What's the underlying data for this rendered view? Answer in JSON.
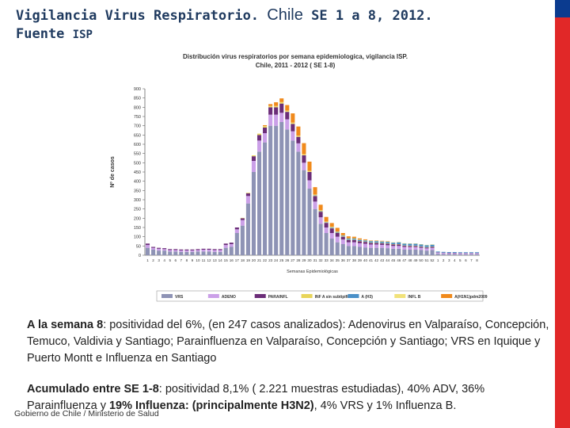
{
  "header": {
    "title_part1": "Vigilancia Virus Respiratorio.",
    "title_part2": "Chile",
    "title_part3": "SE 1 a 8, 2012.",
    "source_label": "Fuente",
    "source_value": "ISP"
  },
  "chart_data": {
    "type": "bar",
    "stacked": true,
    "title": "Distribución virus respiratorios por semana epidemiologica, vigilancia ISP.",
    "subtitle": "Chile, 2011 -  2012 ( SE 1-8)",
    "xlabel": "Semanas Epidemiológicas",
    "ylabel": "Nº de casos",
    "ylim": [
      0,
      900
    ],
    "yticks": [
      0,
      50,
      100,
      150,
      200,
      250,
      300,
      350,
      400,
      450,
      500,
      550,
      600,
      650,
      700,
      750,
      800,
      850,
      900
    ],
    "grid": false,
    "legend_position": "bottom",
    "categories": [
      "1",
      "2",
      "3",
      "4",
      "5",
      "6",
      "7",
      "8",
      "9",
      "10",
      "11",
      "12",
      "13",
      "14",
      "15",
      "16",
      "17",
      "18",
      "19",
      "20",
      "21",
      "22",
      "23",
      "24",
      "25",
      "26",
      "27",
      "28",
      "29",
      "30",
      "31",
      "32",
      "33",
      "34",
      "35",
      "36",
      "37",
      "38",
      "39",
      "40",
      "41",
      "42",
      "43",
      "44",
      "45",
      "46",
      "47",
      "48",
      "49",
      "50",
      "51",
      "52",
      "1",
      "2",
      "3",
      "4",
      "5",
      "6",
      "7",
      "8"
    ],
    "series": [
      {
        "name": "VRS",
        "color": "#8e93b5",
        "values": [
          40,
          30,
          25,
          25,
          20,
          20,
          18,
          18,
          18,
          20,
          20,
          20,
          18,
          18,
          40,
          45,
          120,
          160,
          280,
          450,
          560,
          610,
          700,
          700,
          720,
          680,
          620,
          560,
          460,
          360,
          250,
          170,
          120,
          90,
          70,
          60,
          50,
          50,
          45,
          42,
          40,
          40,
          40,
          38,
          35,
          35,
          30,
          30,
          30,
          28,
          25,
          28,
          8,
          6,
          6,
          6,
          5,
          5,
          5,
          5
        ]
      },
      {
        "name": "ADENO",
        "color": "#cba0e8",
        "values": [
          15,
          10,
          10,
          8,
          8,
          8,
          8,
          8,
          8,
          8,
          10,
          10,
          10,
          10,
          15,
          15,
          20,
          30,
          40,
          60,
          60,
          50,
          60,
          60,
          50,
          55,
          50,
          45,
          40,
          45,
          40,
          35,
          30,
          30,
          30,
          25,
          20,
          20,
          20,
          20,
          18,
          18,
          16,
          16,
          15,
          15,
          15,
          14,
          14,
          12,
          12,
          12,
          6,
          6,
          5,
          5,
          5,
          5,
          5,
          5
        ]
      },
      {
        "name": "PARAINFL",
        "color": "#6b2d78",
        "values": [
          8,
          5,
          5,
          5,
          5,
          5,
          5,
          5,
          5,
          5,
          5,
          5,
          5,
          5,
          8,
          8,
          10,
          10,
          15,
          25,
          30,
          30,
          40,
          40,
          50,
          40,
          40,
          35,
          40,
          45,
          30,
          30,
          25,
          25,
          20,
          15,
          12,
          12,
          10,
          10,
          8,
          8,
          8,
          8,
          8,
          8,
          6,
          6,
          6,
          6,
          5,
          5,
          2,
          2,
          2,
          2,
          2,
          2,
          2,
          2
        ]
      },
      {
        "name": "INF A sin subtipificar",
        "color": "#e8d55a",
        "values": [
          0,
          0,
          0,
          0,
          0,
          0,
          0,
          0,
          0,
          0,
          0,
          0,
          0,
          0,
          0,
          0,
          0,
          2,
          3,
          5,
          6,
          6,
          5,
          5,
          5,
          4,
          4,
          3,
          3,
          3,
          3,
          3,
          2,
          2,
          2,
          2,
          2,
          2,
          2,
          2,
          2,
          2,
          2,
          2,
          2,
          2,
          2,
          2,
          2,
          2,
          2,
          2,
          0,
          0,
          0,
          0,
          0,
          0,
          0,
          0
        ]
      },
      {
        "name": "A (H3)",
        "color": "#4a90c8",
        "values": [
          0,
          0,
          0,
          0,
          0,
          0,
          0,
          0,
          0,
          0,
          0,
          0,
          0,
          0,
          0,
          0,
          0,
          0,
          0,
          0,
          0,
          0,
          0,
          0,
          0,
          0,
          0,
          0,
          0,
          0,
          2,
          2,
          2,
          4,
          4,
          4,
          6,
          6,
          6,
          6,
          8,
          8,
          8,
          8,
          8,
          10,
          10,
          10,
          10,
          10,
          10,
          10,
          4,
          4,
          4,
          4,
          4,
          4,
          4,
          4
        ]
      },
      {
        "name": "INFL B",
        "color": "#f1e27a",
        "values": [
          0,
          0,
          0,
          0,
          0,
          0,
          0,
          0,
          0,
          0,
          0,
          0,
          0,
          0,
          0,
          0,
          0,
          0,
          0,
          0,
          2,
          2,
          2,
          2,
          3,
          3,
          3,
          3,
          3,
          3,
          3,
          3,
          3,
          3,
          2,
          2,
          2,
          2,
          2,
          2,
          2,
          2,
          2,
          2,
          2,
          2,
          2,
          2,
          2,
          2,
          2,
          2,
          0,
          0,
          0,
          0,
          0,
          0,
          0,
          0
        ]
      },
      {
        "name": "A(H1N1)pdm2009",
        "color": "#f08a1c",
        "values": [
          0,
          0,
          0,
          0,
          0,
          0,
          0,
          0,
          0,
          0,
          0,
          0,
          0,
          0,
          0,
          0,
          0,
          0,
          0,
          0,
          0,
          5,
          10,
          20,
          20,
          30,
          50,
          50,
          60,
          50,
          40,
          30,
          25,
          20,
          20,
          12,
          10,
          8,
          6,
          4,
          2,
          2,
          2,
          2,
          0,
          0,
          0,
          0,
          0,
          0,
          0,
          0,
          0,
          0,
          0,
          0,
          0,
          0,
          0,
          0
        ]
      }
    ]
  },
  "body": {
    "p1_bold": "A la semana 8",
    "p1_text": ":  positividad del 6%, (en 247 casos analizados): Adenovirus en  Valparaíso, Concepción, Temuco, Valdivia y  Santiago; Parainfluenza en  Valparaíso, Concepción y Santiago; VRS  en Iquique y Puerto Montt e Influenza en  Santiago",
    "p2_bold1": "Acumulado entre SE 1-8",
    "p2_text1": ":  positividad 8,1% ( 2.221 muestras estudiadas), 40% ADV, 36% Parainfluenza y ",
    "p2_bold2": "19% Influenza: (principalmente H3N2)",
    "p2_text2": ", 4% VRS y 1% Influenza B."
  },
  "footer": {
    "text": "Gobierno de Chile / Ministerio de Salud"
  }
}
